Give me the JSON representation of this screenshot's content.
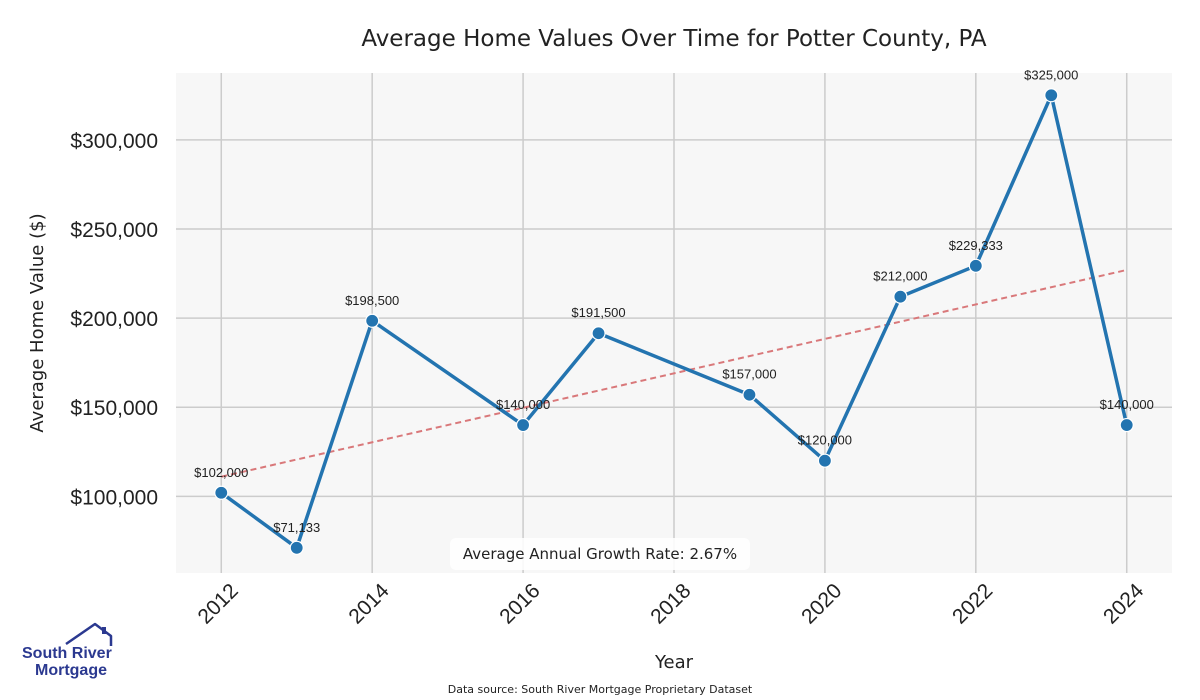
{
  "chart_data": {
    "type": "line",
    "title": "Average Home Values Over Time for Potter County, PA",
    "xlabel": "Year",
    "ylabel": "Average Home Value ($)",
    "x": [
      2012,
      2013,
      2014,
      2016,
      2017,
      2019,
      2020,
      2021,
      2022,
      2023,
      2024
    ],
    "values": [
      102000,
      71133,
      198500,
      140000,
      191500,
      157000,
      120000,
      212000,
      229333,
      325000,
      140000
    ],
    "data_labels": [
      "$102,000",
      "$71,133",
      "$198,500",
      "$140,000",
      "$191,500",
      "$157,000",
      "$120,000",
      "$212,000",
      "$229,333",
      "$325,000",
      "$140,000"
    ],
    "xticks": [
      2012,
      2014,
      2016,
      2018,
      2020,
      2022,
      2024
    ],
    "yticks": [
      100000,
      150000,
      200000,
      250000,
      300000
    ],
    "ytick_labels": [
      "$100,000",
      "$150,000",
      "$200,000",
      "$250,000",
      "$300,000"
    ],
    "xlim": [
      2011.4,
      2024.6
    ],
    "ylim": [
      57000,
      337500
    ],
    "trend": {
      "start": [
        2012,
        111000
      ],
      "end": [
        2024,
        227000
      ],
      "style": "dashed",
      "color": "#d9787a"
    },
    "series_color": "#2374b0",
    "grid": true,
    "annotation": "Average Annual Growth Rate: 2.67%",
    "source": "Data source: South River Mortgage Proprietary Dataset"
  },
  "logo": {
    "line1": "South River",
    "line2": "Mortgage",
    "color": "#2b3990"
  }
}
